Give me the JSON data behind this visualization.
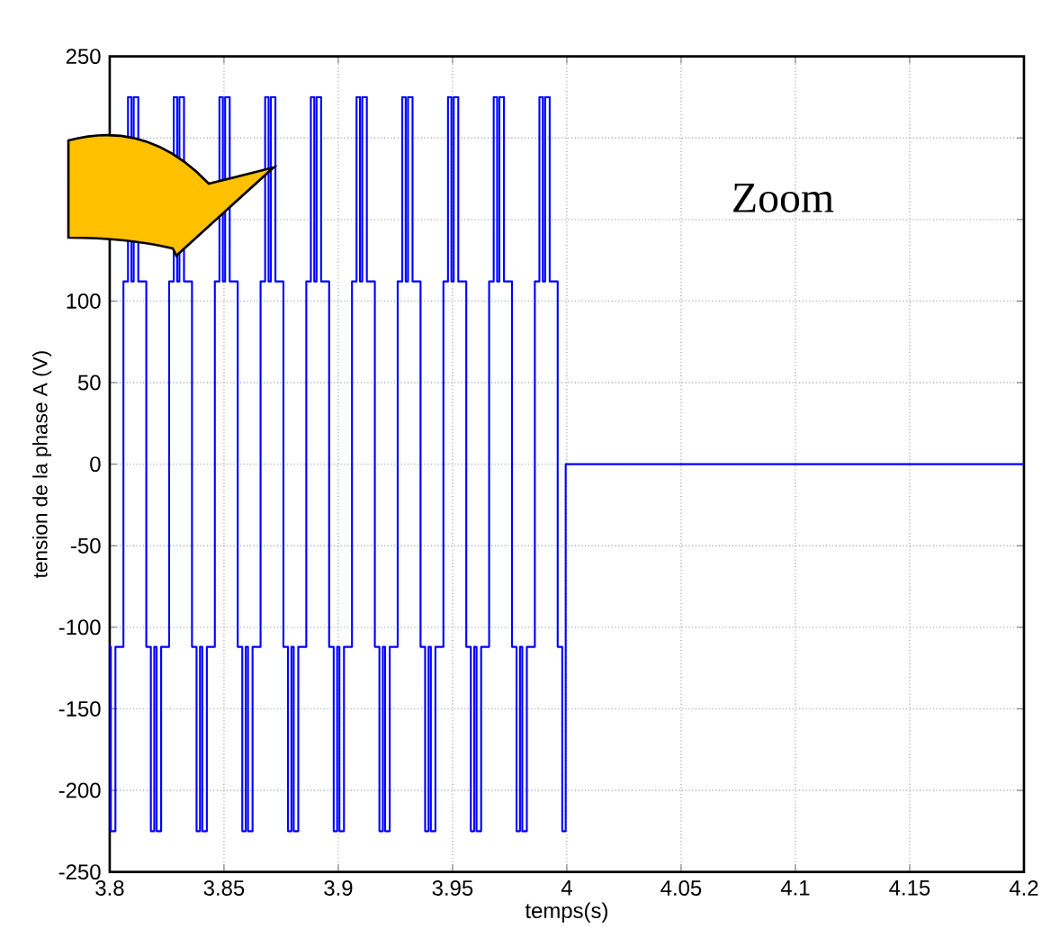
{
  "chart_data": {
    "type": "step",
    "xlabel": "temps(s)",
    "ylabel": "tension de la phase A (V)",
    "annotations": [
      "Zoom"
    ],
    "xlim": [
      3.8,
      4.2
    ],
    "ylim": [
      -250,
      250
    ],
    "xticks": [
      3.8,
      3.85,
      3.9,
      3.95,
      4,
      4.05,
      4.1,
      4.15,
      4.2
    ],
    "yticks": [
      -250,
      -200,
      -150,
      -100,
      -50,
      0,
      50,
      100,
      {
        "value": 150,
        "label": null
      },
      {
        "value": 200,
        "label": null
      },
      250
    ],
    "grid": true,
    "series": [
      {
        "color": "#0000ff",
        "x": [
          3.8,
          3.8005,
          3.8025,
          3.806,
          3.808,
          3.8095,
          3.8105,
          3.8125,
          3.816,
          3.818,
          3.8195,
          3.8205,
          3.8225,
          3.826,
          3.828,
          3.8295,
          3.8305,
          3.8325,
          3.836,
          3.838,
          3.8395,
          3.8405,
          3.8425,
          3.846,
          3.848,
          3.8495,
          3.8505,
          3.8525,
          3.856,
          3.858,
          3.8595,
          3.8605,
          3.8625,
          3.866,
          3.868,
          3.8695,
          3.8705,
          3.8725,
          3.876,
          3.878,
          3.8795,
          3.8805,
          3.8825,
          3.886,
          3.888,
          3.8895,
          3.8905,
          3.8925,
          3.896,
          3.898,
          3.8995,
          3.9005,
          3.9025,
          3.906,
          3.908,
          3.9095,
          3.9105,
          3.9125,
          3.916,
          3.918,
          3.9195,
          3.9205,
          3.9225,
          3.926,
          3.928,
          3.9295,
          3.9305,
          3.9325,
          3.936,
          3.938,
          3.9395,
          3.9405,
          3.9425,
          3.946,
          3.948,
          3.9495,
          3.9505,
          3.9525,
          3.956,
          3.958,
          3.9595,
          3.9605,
          3.9625,
          3.966,
          3.968,
          3.9695,
          3.9705,
          3.9725,
          3.976,
          3.978,
          3.9795,
          3.9805,
          3.9825,
          3.986,
          3.988,
          3.9895,
          3.9905,
          3.9925,
          3.996,
          3.998,
          3.9995,
          4.2
        ],
        "values": [
          -112,
          -225,
          -112,
          112,
          225,
          112,
          225,
          112,
          -112,
          -225,
          -112,
          -225,
          -112,
          112,
          225,
          112,
          225,
          112,
          -112,
          -225,
          -112,
          -225,
          -112,
          112,
          225,
          112,
          225,
          112,
          -112,
          -225,
          -112,
          -225,
          -112,
          112,
          225,
          112,
          225,
          112,
          -112,
          -225,
          -112,
          -225,
          -112,
          112,
          225,
          112,
          225,
          112,
          -112,
          -225,
          -112,
          -225,
          -112,
          112,
          225,
          112,
          225,
          112,
          -112,
          -225,
          -112,
          -225,
          -112,
          112,
          225,
          112,
          225,
          112,
          -112,
          -225,
          -112,
          -225,
          -112,
          112,
          225,
          112,
          225,
          112,
          -112,
          -225,
          -112,
          -225,
          -112,
          112,
          225,
          112,
          225,
          112,
          -112,
          -225,
          -112,
          -225,
          -112,
          112,
          225,
          112,
          225,
          112,
          -112,
          -225,
          0,
          0
        ]
      }
    ]
  }
}
